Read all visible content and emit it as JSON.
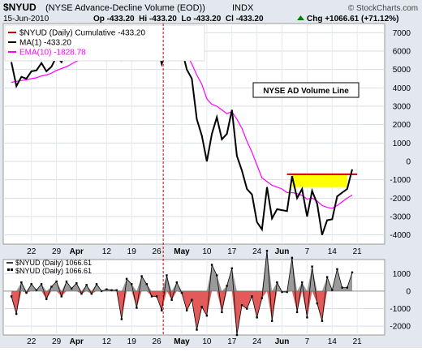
{
  "header": {
    "symbol": "$NYUD",
    "description": "(NYSE Advance-Decline Volume (EOD))",
    "exchange": "INDX",
    "date": "15-Jun-2010",
    "ohlc": "Op -433.20  Hi -433.20  Lo -433.20  Cl -433.20",
    "chg": "Chg +1066.61 (+71.12%)",
    "chg_arrow": "up",
    "watermark": "© StockCharts.com"
  },
  "colors": {
    "price": "#000000",
    "ema": "#ff00ff",
    "support": "#008000",
    "resistance": "#cc0000",
    "highlight": "#ffff00",
    "bar_up": "#888888",
    "bar_down": "#e04848",
    "vline": "#cc0000",
    "panel_bg": "#ffffff",
    "chart_bg": "#e3e8ef"
  },
  "legend": [
    {
      "label": "$NYUD (Daily) Cumulative -433.20",
      "color": "#cc0000"
    },
    {
      "label": "MA(1) -433.20",
      "color": "#000000"
    },
    {
      "label": "EMA(10) -1828.78",
      "color": "#ff00ff"
    }
  ],
  "annotation": "NYSE AD Volume Line",
  "lower_legend": [
    "$NYUD (Daily) 1066.61",
    "$NYUD (Daily) 1066.61"
  ],
  "x_axis_labels": [
    {
      "text": "22",
      "i": 4
    },
    {
      "text": "29",
      "i": 9
    },
    {
      "text": "Apr",
      "i": 13,
      "bold": true
    },
    {
      "text": "12",
      "i": 19
    },
    {
      "text": "19",
      "i": 24
    },
    {
      "text": "26",
      "i": 29
    },
    {
      "text": "May",
      "i": 34,
      "bold": true
    },
    {
      "text": "10",
      "i": 39
    },
    {
      "text": "17",
      "i": 44
    },
    {
      "text": "24",
      "i": 49
    },
    {
      "text": "Jun",
      "i": 54,
      "bold": true
    },
    {
      "text": "7",
      "i": 59
    },
    {
      "text": "14",
      "i": 64
    },
    {
      "text": "21",
      "i": 69
    }
  ],
  "chart_data": [
    {
      "type": "line",
      "title": "$NYUD (NYSE Advance-Decline Volume (EOD))",
      "ylim": [
        -4500,
        7500
      ],
      "y_ticks": [
        -4000,
        -3000,
        -2000,
        -1000,
        0,
        1000,
        2000,
        3000,
        4000,
        5000,
        6000,
        7000
      ],
      "x_start_label": "22",
      "series": [
        {
          "name": "MA(1) -433.20",
          "values": [
            5400,
            4100,
            4600,
            4500,
            4900,
            4950,
            5350,
            4900,
            5150,
            5700,
            5400,
            5950,
            6100,
            6550,
            6400,
            6750,
            6600,
            7000,
            7000,
            7100,
            7150,
            7200,
            5600,
            6300,
            6700,
            5750,
            6600,
            7000,
            6700,
            6400,
            5300,
            6200,
            5700,
            6200,
            6100,
            5000,
            4500,
            2300,
            1400,
            0,
            1500,
            2400,
            1200,
            1500,
            2800,
            300,
            -500,
            -1500,
            -1800,
            -3300,
            -3700,
            -1400,
            -3100,
            -2600,
            -2650,
            -2700,
            -800,
            -2000,
            -1500,
            -3000,
            -1600,
            -2300,
            -4000,
            -3200,
            -3150,
            -1900,
            -1700,
            -1500,
            -433
          ]
        },
        {
          "name": "EMA(10) -1828.78",
          "values": [
            4300,
            4350,
            4400,
            4450,
            4500,
            4550,
            4650,
            4700,
            4800,
            4950,
            5050,
            5150,
            5300,
            5450,
            5550,
            5750,
            5900,
            6050,
            6200,
            6350,
            6450,
            6550,
            6500,
            6450,
            6500,
            6450,
            6450,
            6600,
            6550,
            6500,
            6300,
            6250,
            6150,
            6150,
            6200,
            5800,
            5300,
            4700,
            4200,
            3400,
            3100,
            3000,
            2800,
            2600,
            2700,
            2300,
            1800,
            1100,
            500,
            -200,
            -900,
            -1100,
            -1300,
            -1400,
            -1500,
            -1700,
            -1700,
            -1750,
            -1850,
            -2050,
            -2000,
            -2150,
            -2400,
            -2500,
            -2550,
            -2400,
            -2200,
            -2000,
            -1829
          ]
        }
      ],
      "support_line": {
        "y": 5600,
        "from_i": 24,
        "to_i": 30
      },
      "resistance_line": {
        "y": -700,
        "from_i": 55,
        "to_i": 69
      },
      "highlight_zone": {
        "y_top": -700,
        "y_bottom": -1400,
        "from_i": 56,
        "to_i": 67
      }
    },
    {
      "type": "bar",
      "title": "$NYUD (Daily) 1066.61",
      "ylim": [
        -2500,
        1800
      ],
      "y_ticks": [
        -2000,
        -1000,
        0,
        1000
      ],
      "series": [
        {
          "name": "$NYUD (Daily) 1066.61",
          "values": [
            -300,
            -1300,
            500,
            -100,
            400,
            50,
            400,
            -450,
            250,
            550,
            -300,
            550,
            150,
            450,
            -150,
            350,
            -150,
            400,
            0,
            100,
            50,
            50,
            -1600,
            700,
            400,
            -950,
            850,
            400,
            -300,
            -300,
            -1100,
            900,
            -500,
            500,
            -100,
            -1100,
            -500,
            -2200,
            -900,
            -1400,
            1500,
            900,
            -1200,
            300,
            1300,
            -2500,
            -800,
            -1000,
            -300,
            -1500,
            -400,
            2300,
            -1700,
            500,
            -50,
            -50,
            1900,
            -1200,
            500,
            -1500,
            1400,
            -700,
            -1700,
            800,
            50,
            1250,
            200,
            200,
            1066
          ]
        }
      ]
    }
  ]
}
